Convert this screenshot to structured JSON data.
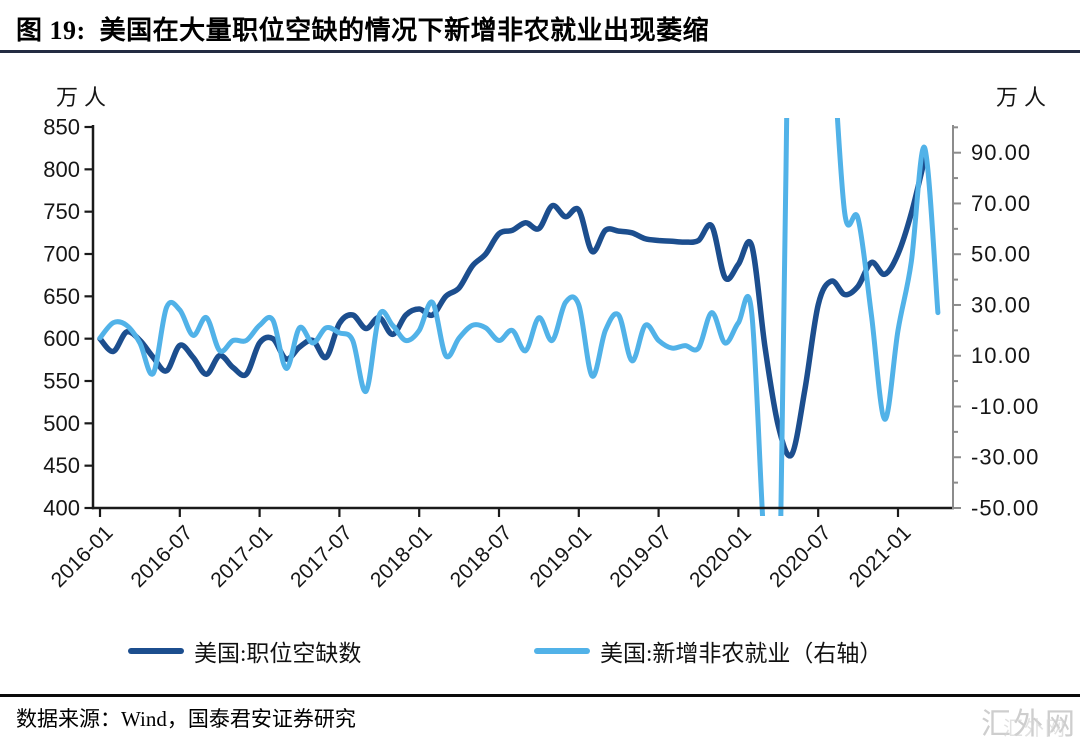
{
  "header": {
    "figure_label": "图 19:",
    "title": "美国在大量职位空缺的情况下新增非农就业出现萎缩"
  },
  "footer": {
    "source": "数据来源：Wind，国泰君安证券研究"
  },
  "watermark": "汇外网",
  "colors": {
    "openings_line": "#1c4e8e",
    "payrolls_line": "#51b2e8",
    "axis": "#1a1a1a",
    "right_axis": "#8c8c8c",
    "title_rule": "#232c42",
    "footer_rule": "#0a0a0a",
    "watermark": "#c6c6c6"
  },
  "chart_data": {
    "type": "line",
    "title": "美国在大量职位空缺的情况下新增非农就业出现萎缩",
    "grid": false,
    "legend_position": "bottom",
    "x_start_month": "2016-01",
    "x_tick_labels": [
      "2016-01",
      "2016-07",
      "2017-01",
      "2017-07",
      "2018-01",
      "2018-07",
      "2019-01",
      "2019-07",
      "2020-01",
      "2020-07",
      "2021-01"
    ],
    "left_axis": {
      "unit": "万人",
      "min": 400,
      "max": 850,
      "tick_interval": 50,
      "tick_labels": [
        "850",
        "800",
        "750",
        "700",
        "650",
        "600",
        "550",
        "500",
        "450",
        "400"
      ]
    },
    "right_axis": {
      "unit": "万人",
      "min": -50,
      "max": 90,
      "tick_interval": 20,
      "minor_tick_interval": 10,
      "tick_labels": [
        "90.00",
        "70.00",
        "50.00",
        "30.00",
        "10.00",
        "-10.00",
        "-30.00",
        "-50.00"
      ]
    },
    "series": [
      {
        "name": "美国:职位空缺数",
        "slug": "job-openings",
        "axis": "left",
        "color": "#1c4e8e",
        "start": "2016-01",
        "values": [
          600,
          585,
          608,
          598,
          578,
          562,
          592,
          578,
          558,
          580,
          566,
          558,
          595,
          600,
          576,
          590,
          598,
          578,
          618,
          628,
          612,
          625,
          605,
          628,
          635,
          628,
          650,
          660,
          686,
          700,
          724,
          728,
          737,
          730,
          757,
          744,
          752,
          703,
          728,
          727,
          725,
          718,
          716,
          715,
          714,
          716,
          733,
          672,
          688,
          710,
          590,
          497,
          463,
          540,
          640,
          668,
          652,
          662,
          690,
          676,
          700,
          748,
          812
        ]
      },
      {
        "name": "美国:新增非农就业（右轴）",
        "slug": "nonfarm-payrolls-monthly-change",
        "axis": "right",
        "color": "#51b2e8",
        "start": "2016-01",
        "values": [
          17,
          23,
          22,
          15,
          3,
          29,
          28,
          18,
          25,
          12,
          16,
          16,
          22,
          24,
          5,
          21,
          15,
          21,
          19,
          16,
          -4,
          26,
          22,
          16,
          20,
          31,
          10,
          17,
          22,
          21,
          16,
          20,
          12,
          25,
          16,
          31,
          30,
          2,
          20,
          26,
          8,
          22,
          16,
          13,
          14,
          13,
          27,
          15,
          23,
          27,
          -70,
          -2050,
          251,
          480,
          176,
          137,
          66,
          64,
          26,
          -15,
          20,
          47,
          92,
          27
        ]
      }
    ]
  }
}
